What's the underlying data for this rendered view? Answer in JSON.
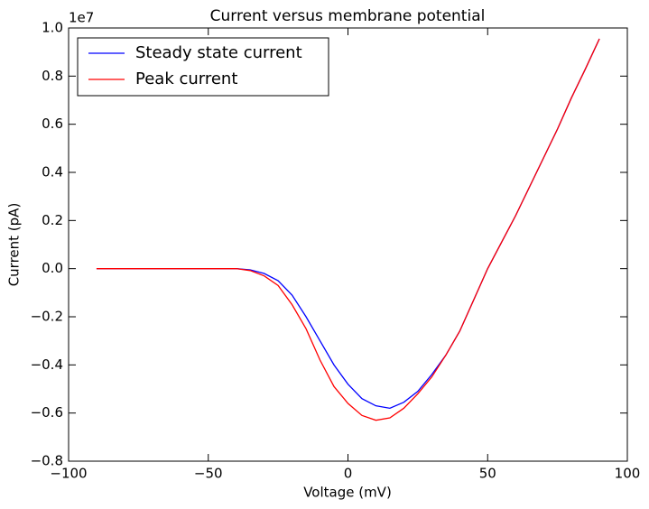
{
  "chart_data": {
    "type": "line",
    "title": "Current versus membrane potential",
    "xlabel": "Voltage (mV)",
    "ylabel": "Current (pA)",
    "y_offset_label": "1e7",
    "x": [
      -90,
      -85,
      -80,
      -75,
      -70,
      -65,
      -60,
      -55,
      -50,
      -45,
      -40,
      -35,
      -30,
      -25,
      -20,
      -15,
      -10,
      -5,
      0,
      5,
      10,
      15,
      20,
      25,
      30,
      35,
      40,
      45,
      50,
      55,
      60,
      65,
      70,
      75,
      80,
      85,
      90
    ],
    "series": [
      {
        "name": "Steady state current",
        "color": "#0000ff",
        "values": [
          0,
          0,
          0,
          0,
          0,
          0,
          0,
          0,
          0,
          0,
          0,
          -0.005,
          -0.02,
          -0.05,
          -0.11,
          -0.2,
          -0.3,
          -0.4,
          -0.48,
          -0.54,
          -0.57,
          -0.58,
          -0.555,
          -0.51,
          -0.44,
          -0.36,
          -0.26,
          -0.13,
          0.0,
          0.11,
          0.22,
          0.34,
          0.46,
          0.58,
          0.71,
          0.83,
          0.955
        ]
      },
      {
        "name": "Peak current",
        "color": "#ff0000",
        "values": [
          0,
          0,
          0,
          0,
          0,
          0,
          0,
          0,
          0,
          0,
          0,
          -0.008,
          -0.03,
          -0.07,
          -0.15,
          -0.25,
          -0.38,
          -0.49,
          -0.56,
          -0.61,
          -0.63,
          -0.62,
          -0.58,
          -0.52,
          -0.45,
          -0.36,
          -0.26,
          -0.13,
          0.0,
          0.11,
          0.22,
          0.34,
          0.46,
          0.58,
          0.71,
          0.83,
          0.955
        ]
      }
    ],
    "xlim": [
      -100,
      100
    ],
    "xticks": [
      {
        "value": -100,
        "label": "−100"
      },
      {
        "value": -50,
        "label": "−50"
      },
      0,
      50,
      100
    ],
    "ylim": [
      -0.8,
      1.0
    ],
    "yticks": [
      {
        "value": -0.8,
        "label": "−0.8"
      },
      {
        "value": -0.6,
        "label": "−0.6"
      },
      {
        "value": -0.4,
        "label": "−0.4"
      },
      {
        "value": -0.2,
        "label": "−0.2"
      },
      {
        "value": 0.0,
        "label": "0.0"
      },
      {
        "value": 0.2,
        "label": "0.2"
      },
      {
        "value": 0.4,
        "label": "0.4"
      },
      {
        "value": 0.6,
        "label": "0.6"
      },
      {
        "value": 0.8,
        "label": "0.8"
      },
      {
        "value": 1.0,
        "label": "1.0"
      }
    ],
    "grid": false,
    "legend": "upper left"
  }
}
